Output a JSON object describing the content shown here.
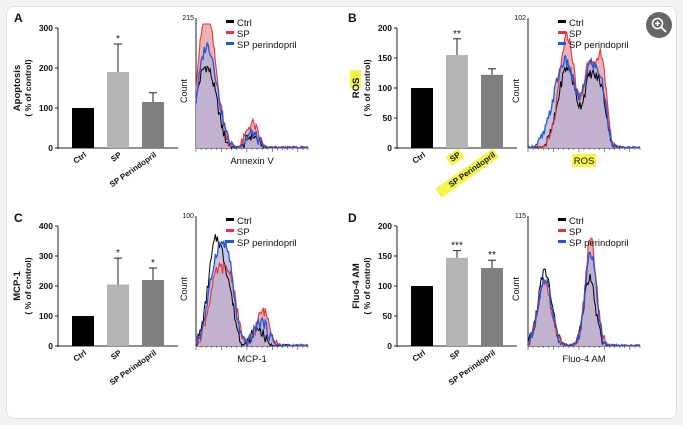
{
  "chart_data": [
    {
      "panel_id": "A",
      "panels": [
        {
          "type": "bar",
          "label": "A",
          "ylabel_main": "Apoptosis",
          "ylabel_sub": "( % of control)",
          "ylabel_highlight": false,
          "ylim": [
            0,
            300
          ],
          "yticks": [
            "0",
            "100",
            "200",
            "300"
          ],
          "categories": [
            "Ctrl",
            "SP",
            "SP Perindopril"
          ],
          "category_highlight": [
            false,
            false,
            false
          ],
          "values": [
            100,
            190,
            115
          ],
          "errors": [
            0,
            70,
            23
          ],
          "significance": [
            "",
            "*",
            ""
          ],
          "colors": [
            "#000000",
            "#b4b4b4",
            "#7f7f7f"
          ]
        },
        {
          "type": "histogram",
          "xlabel": "Annexin V",
          "xlabel_highlight": false,
          "ylabel": "Count",
          "ymax_label": "215",
          "legend": [
            "Ctrl",
            "SP",
            "SP perindopril"
          ],
          "series_colors": [
            "#000000",
            "#e8333c",
            "#2456d6"
          ],
          "peaks": {
            "ctrl": [
              [
                0.06,
                0.55,
                0.07
              ],
              [
                0.16,
                0.3,
                0.06
              ],
              [
                0.5,
                0.1,
                0.05
              ]
            ],
            "sp": [
              [
                0.07,
                0.8,
                0.07
              ],
              [
                0.15,
                0.45,
                0.07
              ],
              [
                0.5,
                0.2,
                0.05
              ]
            ],
            "per": [
              [
                0.07,
                0.6,
                0.07
              ],
              [
                0.16,
                0.4,
                0.07
              ],
              [
                0.5,
                0.12,
                0.05
              ]
            ]
          },
          "fill_colors": [
            "#e8a6a8",
            "#b4b2d8"
          ]
        }
      ]
    },
    {
      "panel_id": "B",
      "panels": [
        {
          "type": "bar",
          "label": "B",
          "ylabel_main": "ROS",
          "ylabel_sub": "( % of control)",
          "ylabel_highlight": true,
          "ylim": [
            0,
            200
          ],
          "yticks": [
            "0",
            "50",
            "100",
            "150",
            "200"
          ],
          "categories": [
            "Ctrl",
            "SP",
            "SP Perindopril"
          ],
          "category_highlight": [
            false,
            true,
            true
          ],
          "values": [
            100,
            155,
            122
          ],
          "errors": [
            0,
            27,
            10
          ],
          "significance": [
            "",
            "**",
            ""
          ],
          "colors": [
            "#000000",
            "#b4b4b4",
            "#7f7f7f"
          ]
        },
        {
          "type": "histogram",
          "xlabel": "ROS",
          "xlabel_highlight": true,
          "ylabel": "Count",
          "ymax_label": "102",
          "legend": [
            "Ctrl",
            "SP",
            "SP perindopril"
          ],
          "series_colors": [
            "#000000",
            "#e8333c",
            "#2456d6"
          ],
          "peaks": {
            "ctrl": [
              [
                0.35,
                0.65,
                0.08
              ],
              [
                0.55,
                0.5,
                0.05
              ],
              [
                0.65,
                0.45,
                0.05
              ]
            ],
            "sp": [
              [
                0.35,
                0.9,
                0.07
              ],
              [
                0.55,
                0.7,
                0.05
              ],
              [
                0.66,
                0.7,
                0.04
              ]
            ],
            "per": [
              [
                0.33,
                0.7,
                0.1
              ],
              [
                0.55,
                0.55,
                0.05
              ],
              [
                0.65,
                0.5,
                0.05
              ]
            ]
          },
          "fill_colors": [
            "#e8a6a8",
            "#b4b2d8"
          ]
        }
      ]
    },
    {
      "panel_id": "C",
      "panels": [
        {
          "type": "bar",
          "label": "C",
          "ylabel_main": "MCP-1",
          "ylabel_sub": "( % of control)",
          "ylabel_highlight": false,
          "ylim": [
            0,
            400
          ],
          "yticks": [
            "0",
            "100",
            "200",
            "300",
            "400"
          ],
          "categories": [
            "Ctrl",
            "SP",
            "SP Perindopril"
          ],
          "category_highlight": [
            false,
            false,
            false
          ],
          "values": [
            100,
            205,
            220
          ],
          "errors": [
            0,
            88,
            40
          ],
          "significance": [
            "",
            "*",
            "*"
          ],
          "colors": [
            "#000000",
            "#b4b4b4",
            "#7f7f7f"
          ]
        },
        {
          "type": "histogram",
          "xlabel": "MCP-1",
          "xlabel_highlight": false,
          "ylabel": "Count",
          "ymax_label": "100",
          "legend": [
            "Ctrl",
            "SP",
            "SP perindopril"
          ],
          "series_colors": [
            "#000000",
            "#e8333c",
            "#2456d6"
          ],
          "peaks": {
            "ctrl": [
              [
                0.18,
                0.85,
                0.07
              ],
              [
                0.3,
                0.3,
                0.05
              ],
              [
                0.55,
                0.15,
                0.05
              ]
            ],
            "sp": [
              [
                0.2,
                0.6,
                0.08
              ],
              [
                0.32,
                0.35,
                0.05
              ],
              [
                0.6,
                0.28,
                0.06
              ]
            ],
            "per": [
              [
                0.2,
                0.75,
                0.08
              ],
              [
                0.3,
                0.35,
                0.05
              ],
              [
                0.58,
                0.2,
                0.06
              ]
            ]
          },
          "fill_colors": [
            "#e8a6a8",
            "#b4b2d8"
          ]
        }
      ]
    },
    {
      "panel_id": "D",
      "panels": [
        {
          "type": "bar",
          "label": "D",
          "ylabel_main": "Fluo-4 AM",
          "ylabel_sub": "( % of control)",
          "ylabel_highlight": false,
          "ylim": [
            0,
            200
          ],
          "yticks": [
            "0",
            "50",
            "100",
            "150",
            "200"
          ],
          "categories": [
            "Ctrl",
            "SP",
            "SP Perindopril"
          ],
          "category_highlight": [
            false,
            false,
            false
          ],
          "values": [
            100,
            147,
            130
          ],
          "errors": [
            0,
            12,
            13
          ],
          "significance": [
            "",
            "***",
            "**"
          ],
          "colors": [
            "#000000",
            "#b4b4b4",
            "#7f7f7f"
          ]
        },
        {
          "type": "histogram",
          "xlabel": "Fluo-4 AM",
          "xlabel_highlight": false,
          "ylabel": "Count",
          "ymax_label": "115",
          "legend": [
            "Ctrl",
            "SP",
            "SP perindopril"
          ],
          "series_colors": [
            "#000000",
            "#e8333c",
            "#2456d6"
          ],
          "peaks": {
            "ctrl": [
              [
                0.15,
                0.6,
                0.06
              ],
              [
                0.55,
                0.55,
                0.05
              ]
            ],
            "sp": [
              [
                0.15,
                0.5,
                0.06
              ],
              [
                0.56,
                0.85,
                0.05
              ]
            ],
            "per": [
              [
                0.15,
                0.55,
                0.06
              ],
              [
                0.56,
                0.75,
                0.05
              ]
            ]
          },
          "fill_colors": [
            "#e8a6a8",
            "#b4b2d8"
          ]
        }
      ]
    }
  ],
  "zoom_icon": "zoom-in-icon",
  "highlight_color": "#f5f54a"
}
